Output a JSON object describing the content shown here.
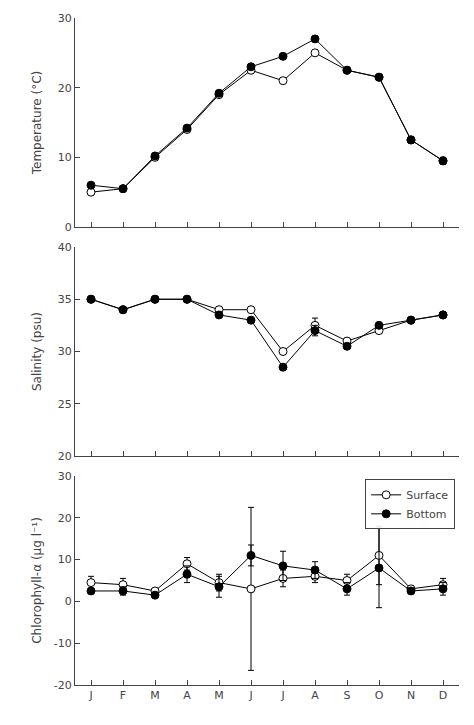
{
  "chart_data": [
    {
      "type": "line",
      "y_label": "Temperature (°C)",
      "categories": [
        "J",
        "F",
        "M",
        "A",
        "M",
        "J",
        "J",
        "A",
        "S",
        "O",
        "N",
        "D"
      ],
      "series": [
        {
          "name": "Surface",
          "color": "black",
          "marker": "circle-open",
          "line_style": "solid",
          "values": [
            5.0,
            5.5,
            10.0,
            14.0,
            19.0,
            22.5,
            21.0,
            25.0,
            22.5,
            21.5,
            12.5,
            9.5
          ],
          "errors": [
            0.3,
            0.0,
            0.0,
            0.0,
            0.0,
            0.0,
            0.0,
            0.0,
            0.0,
            0.0,
            0.5,
            0.5
          ]
        },
        {
          "name": "Bottom",
          "color": "black",
          "marker": "circle",
          "line_style": "solid",
          "values": [
            6.0,
            5.5,
            10.2,
            14.2,
            19.2,
            23.0,
            24.5,
            27.0,
            22.5,
            21.5,
            12.5,
            9.5
          ],
          "errors": [
            0.2,
            0.0,
            0.0,
            0.0,
            0.0,
            0.3,
            0.3,
            0.4,
            0.0,
            0.0,
            0.3,
            0.0
          ]
        }
      ],
      "ylim": [
        0,
        30
      ],
      "yticks": [
        0,
        10,
        20,
        30
      ],
      "grid": false,
      "tick_labels": "y"
    },
    {
      "type": "line",
      "y_label": "Salinity (psu)",
      "categories": [
        "J",
        "F",
        "M",
        "A",
        "M",
        "J",
        "J",
        "A",
        "S",
        "O",
        "N",
        "D"
      ],
      "series": [
        {
          "name": "Surface",
          "color": "black",
          "marker": "circle-open",
          "line_style": "solid",
          "values": [
            35.0,
            34.0,
            35.0,
            35.0,
            34.0,
            34.0,
            30.0,
            32.5,
            31.0,
            32.0,
            33.0,
            33.5
          ],
          "errors": [
            0.0,
            0.0,
            0.0,
            0.0,
            0.0,
            0.0,
            0.0,
            0.7,
            0.0,
            0.0,
            0.0,
            0.0
          ]
        },
        {
          "name": "Bottom",
          "color": "black",
          "marker": "circle",
          "line_style": "solid",
          "values": [
            35.0,
            34.0,
            35.0,
            35.0,
            33.5,
            33.0,
            28.5,
            32.0,
            30.5,
            32.5,
            33.0,
            33.5
          ],
          "errors": [
            0.0,
            0.0,
            0.0,
            0.0,
            0.0,
            0.0,
            0.0,
            0.5,
            0.0,
            0.0,
            0.0,
            0.0
          ]
        }
      ],
      "ylim": [
        20,
        40
      ],
      "yticks": [
        20,
        25,
        30,
        35,
        40
      ],
      "grid": false,
      "tick_labels": "y"
    },
    {
      "type": "line",
      "y_label": "Chlorophyll-α (μg l⁻¹)",
      "categories": [
        "J",
        "F",
        "M",
        "A",
        "M",
        "J",
        "J",
        "A",
        "S",
        "O",
        "N",
        "D"
      ],
      "series": [
        {
          "name": "Surface",
          "color": "black",
          "marker": "circle-open",
          "line_style": "solid",
          "values": [
            4.5,
            4.0,
            2.5,
            9.0,
            4.5,
            3.0,
            5.5,
            6.0,
            5.0,
            11.0,
            3.0,
            4.0
          ],
          "errors": [
            1.5,
            1.5,
            0.5,
            1.5,
            2.0,
            19.5,
            2.0,
            1.5,
            1.5,
            7.0,
            0.5,
            1.5
          ]
        },
        {
          "name": "Bottom",
          "color": "black",
          "marker": "circle",
          "line_style": "solid",
          "values": [
            2.5,
            2.5,
            1.5,
            6.5,
            3.5,
            11.0,
            8.5,
            7.5,
            3.0,
            8.0,
            2.5,
            3.0
          ],
          "errors": [
            0.5,
            1.0,
            0.5,
            2.0,
            2.5,
            2.5,
            3.5,
            2.0,
            1.5,
            9.5,
            0.5,
            1.5
          ]
        }
      ],
      "ylim": [
        -20,
        30
      ],
      "yticks": [
        -20,
        -10,
        0,
        10,
        20,
        30
      ],
      "grid": false,
      "legend": "upper right"
    }
  ]
}
